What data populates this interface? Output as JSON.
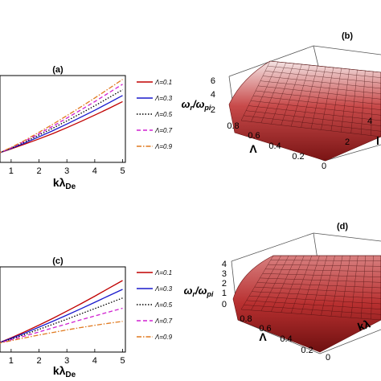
{
  "panels": [
    {
      "letter": "(a)",
      "kind": "line",
      "xlabel": "kλ",
      "xlabel_sub": "De"
    },
    {
      "letter": "(b)",
      "kind": "surface",
      "zlabel": "ω",
      "zlabel_sub1": "r",
      "zlabel_sub2": "pi",
      "ylabel": "Λ",
      "xlabel_partial": "l",
      "z_ticks": [
        "2",
        "4",
        "6"
      ],
      "zlim": [
        0,
        6.5
      ],
      "lambda_ticks": [
        "0.8",
        "0.6",
        "0.4",
        "0.2"
      ],
      "k_ticks": [
        "0",
        "2",
        "4"
      ]
    },
    {
      "letter": "(c)",
      "kind": "line",
      "xlabel": "kλ",
      "xlabel_sub": "De"
    },
    {
      "letter": "(d)",
      "kind": "surface",
      "zlabel": "ω",
      "zlabel_sub1": "r",
      "zlabel_sub2": "pi",
      "ylabel": "Λ",
      "xlabel_partial": "kλ",
      "z_ticks": [
        "0",
        "1",
        "2",
        "3",
        "4"
      ],
      "zlim": [
        0,
        4.5
      ],
      "lambda_ticks": [
        "0.8",
        "0.6",
        "0.4",
        "0.2"
      ],
      "k_ticks": [
        "0"
      ]
    }
  ],
  "chart_data": [
    {
      "type": "line",
      "panel": "(a)",
      "xlabel": "kλDe",
      "x_ticks": [
        1,
        2,
        3,
        4,
        5
      ],
      "xlim": [
        0.6,
        5.1
      ],
      "ylim": [
        0,
        5
      ],
      "x": [
        0.5,
        1,
        1.5,
        2,
        2.5,
        3,
        3.5,
        4,
        4.5,
        5
      ],
      "series": [
        {
          "name": "Λ=0.1",
          "color": "#c00000",
          "dash": "solid",
          "values": [
            0.5,
            0.78,
            1.06,
            1.35,
            1.66,
            2.0,
            2.35,
            2.72,
            3.1,
            3.5
          ]
        },
        {
          "name": "Λ=0.3",
          "color": "#1a1acc",
          "dash": "solid",
          "values": [
            0.5,
            0.8,
            1.12,
            1.47,
            1.83,
            2.21,
            2.6,
            3.0,
            3.42,
            3.85
          ]
        },
        {
          "name": "Λ=0.5",
          "color": "#000000",
          "dash": "dotted",
          "values": [
            0.5,
            0.82,
            1.18,
            1.57,
            1.97,
            2.39,
            2.82,
            3.26,
            3.72,
            4.18
          ]
        },
        {
          "name": "Λ=0.7",
          "color": "#d020d0",
          "dash": "dashed",
          "values": [
            0.5,
            0.84,
            1.23,
            1.65,
            2.09,
            2.55,
            3.02,
            3.5,
            4.0,
            4.5
          ]
        },
        {
          "name": "Λ=0.9",
          "color": "#e07a20",
          "dash": "dashdot",
          "values": [
            0.5,
            0.86,
            1.28,
            1.73,
            2.2,
            2.69,
            3.19,
            3.71,
            4.24,
            4.78
          ]
        }
      ]
    },
    {
      "type": "surface",
      "panel": "(b)",
      "zlabel": "ωr/ωpi",
      "ylabel": "Λ",
      "z_ticks": [
        2,
        4,
        6
      ],
      "lambda_ticks": [
        0.8,
        0.6,
        0.4,
        0.2
      ],
      "k_ticks": [
        0,
        2,
        4
      ]
    },
    {
      "type": "line",
      "panel": "(c)",
      "xlabel": "kλDe",
      "x_ticks": [
        1,
        2,
        3,
        4,
        5
      ],
      "xlim": [
        0.6,
        5.1
      ],
      "ylim": [
        0,
        5
      ],
      "x": [
        0.5,
        1,
        1.5,
        2,
        2.5,
        3,
        3.5,
        4,
        4.5,
        5
      ],
      "series": [
        {
          "name": "Λ=0.1",
          "color": "#c00000",
          "dash": "solid",
          "values": [
            0.5,
            0.84,
            1.2,
            1.58,
            1.98,
            2.4,
            2.83,
            3.28,
            3.74,
            4.2
          ]
        },
        {
          "name": "Λ=0.3",
          "color": "#1a1acc",
          "dash": "solid",
          "values": [
            0.5,
            0.8,
            1.12,
            1.46,
            1.81,
            2.17,
            2.54,
            2.92,
            3.3,
            3.68
          ]
        },
        {
          "name": "Λ=0.5",
          "color": "#000000",
          "dash": "dotted",
          "values": [
            0.5,
            0.76,
            1.04,
            1.33,
            1.63,
            1.93,
            2.24,
            2.55,
            2.86,
            3.17
          ]
        },
        {
          "name": "Λ=0.7",
          "color": "#d020d0",
          "dash": "dashed",
          "values": [
            0.5,
            0.72,
            0.95,
            1.18,
            1.42,
            1.65,
            1.89,
            2.12,
            2.35,
            2.57
          ]
        },
        {
          "name": "Λ=0.9",
          "color": "#e07a20",
          "dash": "dashdot",
          "values": [
            0.5,
            0.67,
            0.84,
            1.0,
            1.15,
            1.3,
            1.44,
            1.57,
            1.69,
            1.8
          ]
        }
      ]
    },
    {
      "type": "surface",
      "panel": "(d)",
      "zlabel": "ωr/ωpi",
      "ylabel": "Λ",
      "z_ticks": [
        0,
        1,
        2,
        3,
        4
      ],
      "lambda_ticks": [
        0.8,
        0.6,
        0.4,
        0.2
      ],
      "k_ticks": [
        0
      ]
    }
  ]
}
